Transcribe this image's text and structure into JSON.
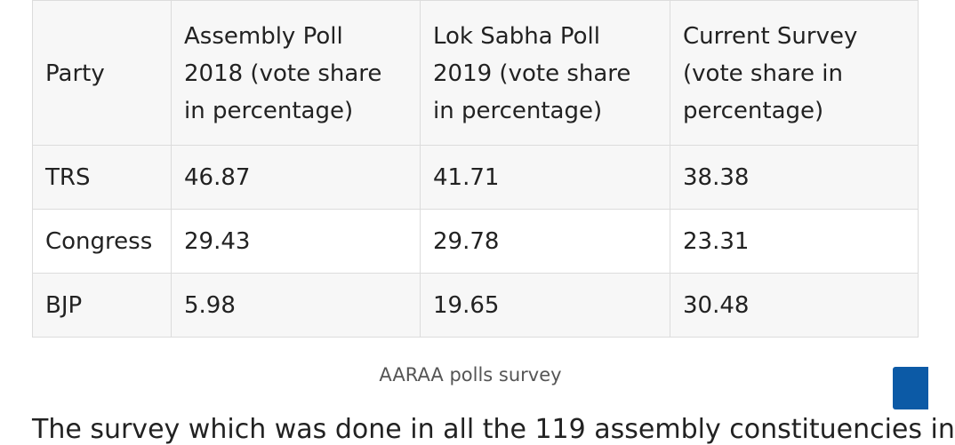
{
  "table": {
    "headers": [
      "Party",
      "Assembly Poll 2018 (vote share in percentage)",
      "Lok Sabha Poll 2019 (vote share in percentage)",
      "Current Survey (vote share in percentage)"
    ],
    "header_lines": [
      [
        "Party"
      ],
      [
        "Assembly Poll",
        "2018 (vote share",
        "in percentage)"
      ],
      [
        "Lok Sabha Poll",
        "2019 (vote share",
        "in percentage)"
      ],
      [
        "Current Survey",
        "(vote share in",
        "percentage)"
      ]
    ],
    "rows": [
      {
        "party": "TRS",
        "assembly_2018": "46.87",
        "lok_sabha_2019": "41.71",
        "current": "38.38"
      },
      {
        "party": "Congress",
        "assembly_2018": "29.43",
        "lok_sabha_2019": "29.78",
        "current": "23.31"
      },
      {
        "party": "BJP",
        "assembly_2018": "5.98",
        "lok_sabha_2019": "19.65",
        "current": "30.48"
      }
    ]
  },
  "caption": "AARAA polls survey",
  "body_text": "The survey which was done in all the 119 assembly constituencies in",
  "colors": {
    "side_button": "#0c5aa6",
    "row_shade": "#f7f7f7",
    "border": "#dcdcdc"
  }
}
